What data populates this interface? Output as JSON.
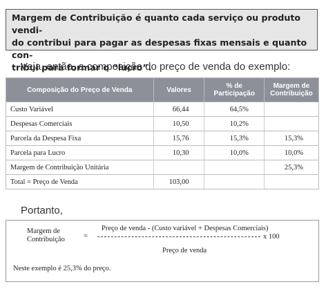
{
  "note_box": {
    "lines": [
      "Margem de Contribuição é quanto cada serviço ou produto vendi-",
      "do contribui para pagar as despesas fixas mensais e quanto con-",
      "tribui para formar o “lucro”."
    ]
  },
  "intro": "Veja, então, a composição do preço de venda do exemplo:",
  "table": {
    "header": [
      [
        "Composição do Preço de Venda"
      ],
      [
        "Valores"
      ],
      [
        "% de",
        "Participação"
      ],
      [
        "Margem de",
        "Contribuição"
      ]
    ],
    "rows": [
      [
        "Custo Variável",
        "66,44",
        "64,5%",
        null
      ],
      [
        "Despesas Comerciais",
        "10,50",
        "10,2%",
        null
      ],
      [
        "Parcela da Despesa Fixa",
        "15,76",
        "15,3%",
        "15,3%"
      ],
      [
        "Parcela para Lucro",
        "10,30",
        "10,0%",
        "10,0%"
      ],
      [
        "Margem de Contribuição Unitária",
        null,
        null,
        "25,3%"
      ],
      [
        "Total = Preço de Venda",
        "103,00",
        null,
        null
      ]
    ]
  },
  "conclusion": "Portanto,",
  "formula": {
    "label": [
      "Margem de",
      "Contribuição"
    ],
    "equals": "=",
    "numerator": "Preço de venda - (Custo variável + Despesas Comerciais)",
    "denominator": "Preço de venda",
    "multiplier": "x 100",
    "note": "Neste exemplo é 25,3% do preço."
  }
}
